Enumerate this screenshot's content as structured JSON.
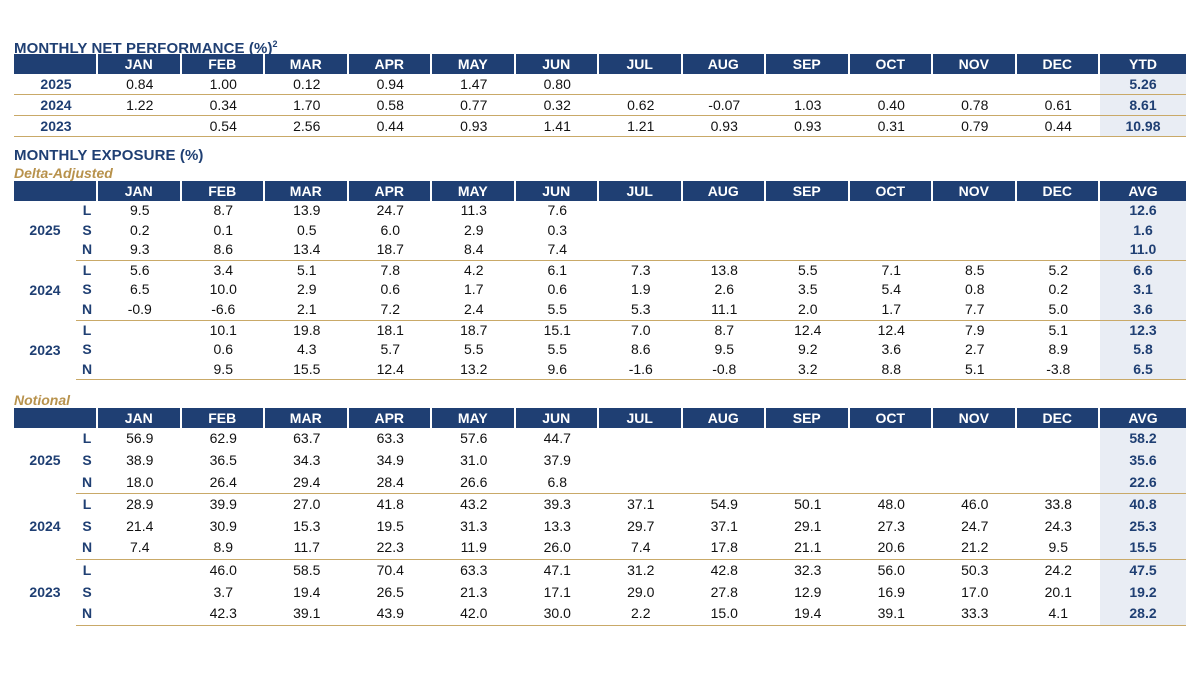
{
  "performance": {
    "title": "MONTHLY NET PERFORMANCE (%)",
    "title_sup": "2",
    "months": [
      "JAN",
      "FEB",
      "MAR",
      "APR",
      "MAY",
      "JUN",
      "JUL",
      "AUG",
      "SEP",
      "OCT",
      "NOV",
      "DEC"
    ],
    "total_label": "YTD",
    "rows": [
      {
        "year": "2025",
        "values": [
          "0.84",
          "1.00",
          "0.12",
          "0.94",
          "1.47",
          "0.80",
          "",
          "",
          "",
          "",
          "",
          ""
        ],
        "total": "5.26"
      },
      {
        "year": "2024",
        "values": [
          "1.22",
          "0.34",
          "1.70",
          "0.58",
          "0.77",
          "0.32",
          "0.62",
          "-0.07",
          "1.03",
          "0.40",
          "0.78",
          "0.61"
        ],
        "total": "8.61"
      },
      {
        "year": "2023",
        "values": [
          "",
          "0.54",
          "2.56",
          "0.44",
          "0.93",
          "1.41",
          "1.21",
          "0.93",
          "0.93",
          "0.31",
          "0.79",
          "0.44"
        ],
        "total": "10.98"
      }
    ]
  },
  "exposure": {
    "title": "MONTHLY EXPOSURE (%)",
    "delta": {
      "subtitle": "Delta-Adjusted",
      "total_label": "AVG",
      "groups": [
        {
          "year": "2025",
          "rows": [
            {
              "type": "L",
              "values": [
                "9.5",
                "8.7",
                "13.9",
                "24.7",
                "11.3",
                "7.6",
                "",
                "",
                "",
                "",
                "",
                ""
              ],
              "total": "12.6"
            },
            {
              "type": "S",
              "values": [
                "0.2",
                "0.1",
                "0.5",
                "6.0",
                "2.9",
                "0.3",
                "",
                "",
                "",
                "",
                "",
                ""
              ],
              "total": "1.6"
            },
            {
              "type": "N",
              "values": [
                "9.3",
                "8.6",
                "13.4",
                "18.7",
                "8.4",
                "7.4",
                "",
                "",
                "",
                "",
                "",
                ""
              ],
              "total": "11.0"
            }
          ]
        },
        {
          "year": "2024",
          "rows": [
            {
              "type": "L",
              "values": [
                "5.6",
                "3.4",
                "5.1",
                "7.8",
                "4.2",
                "6.1",
                "7.3",
                "13.8",
                "5.5",
                "7.1",
                "8.5",
                "5.2"
              ],
              "total": "6.6"
            },
            {
              "type": "S",
              "values": [
                "6.5",
                "10.0",
                "2.9",
                "0.6",
                "1.7",
                "0.6",
                "1.9",
                "2.6",
                "3.5",
                "5.4",
                "0.8",
                "0.2"
              ],
              "total": "3.1"
            },
            {
              "type": "N",
              "values": [
                "-0.9",
                "-6.6",
                "2.1",
                "7.2",
                "2.4",
                "5.5",
                "5.3",
                "11.1",
                "2.0",
                "1.7",
                "7.7",
                "5.0"
              ],
              "total": "3.6"
            }
          ]
        },
        {
          "year": "2023",
          "rows": [
            {
              "type": "L",
              "values": [
                "",
                "10.1",
                "19.8",
                "18.1",
                "18.7",
                "15.1",
                "7.0",
                "8.7",
                "12.4",
                "12.4",
                "7.9",
                "5.1"
              ],
              "total": "12.3"
            },
            {
              "type": "S",
              "values": [
                "",
                "0.6",
                "4.3",
                "5.7",
                "5.5",
                "5.5",
                "8.6",
                "9.5",
                "9.2",
                "3.6",
                "2.7",
                "8.9"
              ],
              "total": "5.8"
            },
            {
              "type": "N",
              "values": [
                "",
                "9.5",
                "15.5",
                "12.4",
                "13.2",
                "9.6",
                "-1.6",
                "-0.8",
                "3.2",
                "8.8",
                "5.1",
                "-3.8"
              ],
              "total": "6.5"
            }
          ]
        }
      ]
    },
    "notional": {
      "subtitle": "Notional",
      "total_label": "AVG",
      "groups": [
        {
          "year": "2025",
          "rows": [
            {
              "type": "L",
              "values": [
                "56.9",
                "62.9",
                "63.7",
                "63.3",
                "57.6",
                "44.7",
                "",
                "",
                "",
                "",
                "",
                ""
              ],
              "total": "58.2"
            },
            {
              "type": "S",
              "values": [
                "38.9",
                "36.5",
                "34.3",
                "34.9",
                "31.0",
                "37.9",
                "",
                "",
                "",
                "",
                "",
                ""
              ],
              "total": "35.6"
            },
            {
              "type": "N",
              "values": [
                "18.0",
                "26.4",
                "29.4",
                "28.4",
                "26.6",
                "6.8",
                "",
                "",
                "",
                "",
                "",
                ""
              ],
              "total": "22.6"
            }
          ]
        },
        {
          "year": "2024",
          "rows": [
            {
              "type": "L",
              "values": [
                "28.9",
                "39.9",
                "27.0",
                "41.8",
                "43.2",
                "39.3",
                "37.1",
                "54.9",
                "50.1",
                "48.0",
                "46.0",
                "33.8"
              ],
              "total": "40.8"
            },
            {
              "type": "S",
              "values": [
                "21.4",
                "30.9",
                "15.3",
                "19.5",
                "31.3",
                "13.3",
                "29.7",
                "37.1",
                "29.1",
                "27.3",
                "24.7",
                "24.3"
              ],
              "total": "25.3"
            },
            {
              "type": "N",
              "values": [
                "7.4",
                "8.9",
                "11.7",
                "22.3",
                "11.9",
                "26.0",
                "7.4",
                "17.8",
                "21.1",
                "20.6",
                "21.2",
                "9.5"
              ],
              "total": "15.5"
            }
          ]
        },
        {
          "year": "2023",
          "rows": [
            {
              "type": "L",
              "values": [
                "",
                "46.0",
                "58.5",
                "70.4",
                "63.3",
                "47.1",
                "31.2",
                "42.8",
                "32.3",
                "56.0",
                "50.3",
                "24.2"
              ],
              "total": "47.5"
            },
            {
              "type": "S",
              "values": [
                "",
                "3.7",
                "19.4",
                "26.5",
                "21.3",
                "17.1",
                "29.0",
                "27.8",
                "12.9",
                "16.9",
                "17.0",
                "20.1"
              ],
              "total": "19.2"
            },
            {
              "type": "N",
              "values": [
                "",
                "42.3",
                "39.1",
                "43.9",
                "42.0",
                "30.0",
                "2.2",
                "15.0",
                "19.4",
                "39.1",
                "33.3",
                "4.1"
              ],
              "total": "28.2"
            }
          ]
        }
      ]
    }
  }
}
